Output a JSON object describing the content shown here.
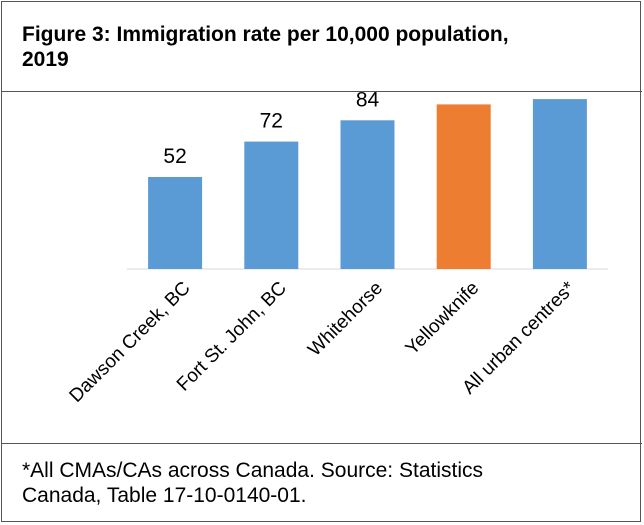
{
  "chart_data": {
    "type": "bar",
    "title": "Figure 3: Immigration rate per 10,000 population,\n2019",
    "categories": [
      "Dawson Creek, BC",
      "Fort St. John, BC",
      "Whitehorse",
      "Yellowknife",
      "All urban centres*"
    ],
    "values": [
      52,
      72,
      84,
      93,
      96
    ],
    "colors": [
      "#5B9BD5",
      "#5B9BD5",
      "#5B9BD5",
      "#ED7D31",
      "#5B9BD5"
    ],
    "ylim": [
      0,
      100
    ],
    "xlabel": "",
    "ylabel": "",
    "grid": false,
    "legend": "none"
  },
  "note": "*All CMAs/CAs across Canada. Source: Statistics\nCanada, Table 17-10-0140-01."
}
